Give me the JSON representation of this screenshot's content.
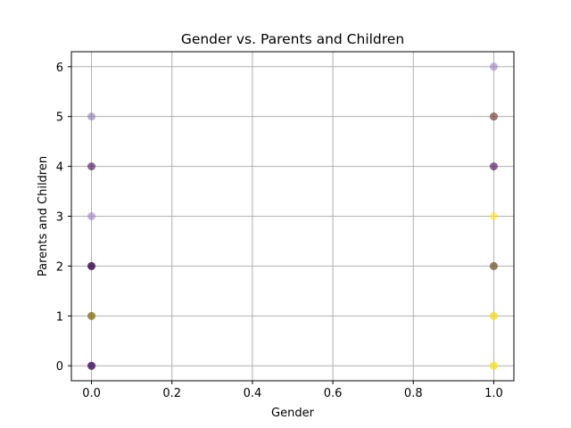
{
  "chart_data": {
    "type": "scatter",
    "title": "Gender vs. Parents and Children",
    "xlabel": "Gender",
    "ylabel": "Parents and Children",
    "xlim": [
      -0.05,
      1.05
    ],
    "ylim": [
      -0.3,
      6.3
    ],
    "x_ticks": [
      0.0,
      0.2,
      0.4,
      0.6,
      0.8,
      1.0
    ],
    "x_tick_labels": [
      "0.0",
      "0.2",
      "0.4",
      "0.6",
      "0.8",
      "1.0"
    ],
    "y_ticks": [
      0,
      1,
      2,
      3,
      4,
      5,
      6
    ],
    "y_tick_labels": [
      "0",
      "1",
      "2",
      "3",
      "4",
      "5",
      "6"
    ],
    "grid": true,
    "legend": "none",
    "colormap": "viridis",
    "points": [
      {
        "x": 0,
        "y": 0,
        "color": "#440154"
      },
      {
        "x": 0,
        "y": 0,
        "color": "#481a6c"
      },
      {
        "x": 0,
        "y": 1,
        "color": "#b8a000"
      },
      {
        "x": 0,
        "y": 1,
        "color": "#7a6a2a"
      },
      {
        "x": 0,
        "y": 2,
        "color": "#440154"
      },
      {
        "x": 0,
        "y": 2,
        "color": "#3b0f4e"
      },
      {
        "x": 0,
        "y": 3,
        "color": "#9b7fc4"
      },
      {
        "x": 0,
        "y": 4,
        "color": "#440154"
      },
      {
        "x": 0,
        "y": 5,
        "color": "#8f74b8"
      },
      {
        "x": 1,
        "y": 0,
        "color": "#fde725"
      },
      {
        "x": 1,
        "y": 0,
        "color": "#f5e035"
      },
      {
        "x": 1,
        "y": 1,
        "color": "#fde725"
      },
      {
        "x": 1,
        "y": 1,
        "color": "#f0d830"
      },
      {
        "x": 1,
        "y": 2,
        "color": "#a08830"
      },
      {
        "x": 1,
        "y": 2,
        "color": "#6a5a4a"
      },
      {
        "x": 1,
        "y": 3,
        "color": "#fde725"
      },
      {
        "x": 1,
        "y": 4,
        "color": "#440154"
      },
      {
        "x": 1,
        "y": 5,
        "color": "#5a1a3a"
      },
      {
        "x": 1,
        "y": 5,
        "color": "#a07a60"
      },
      {
        "x": 1,
        "y": 6,
        "color": "#9b7fc4"
      }
    ]
  },
  "style": {
    "grid_color": "#b0b0b0",
    "axis_color": "#000000",
    "point_alpha": 0.6
  }
}
